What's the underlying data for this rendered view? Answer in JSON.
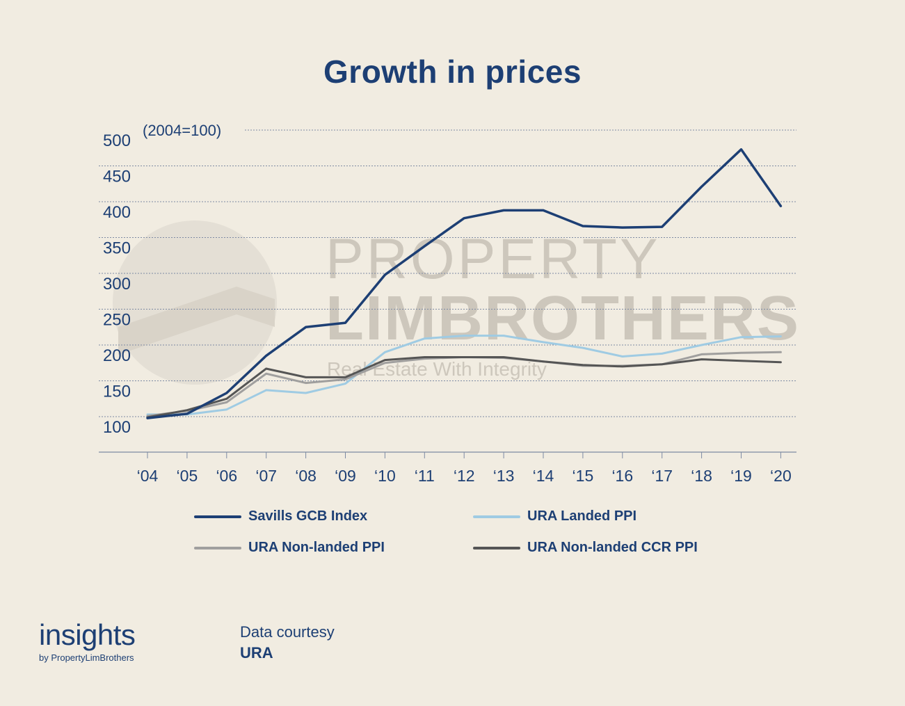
{
  "chart_data": {
    "type": "line",
    "title": "Growth in prices",
    "ylabel": "(2004=100)",
    "xlabel": "",
    "ylim": [
      100,
      500
    ],
    "yticks": [
      100,
      150,
      200,
      250,
      300,
      350,
      400,
      450,
      500
    ],
    "x": [
      "‘04",
      "‘05",
      "‘06",
      "‘07",
      "‘08",
      "‘09",
      "‘10",
      "‘11",
      "‘12",
      "‘13",
      "‘14",
      "‘15",
      "‘16",
      "‘17",
      "‘18",
      "‘19",
      "‘20"
    ],
    "grid": true,
    "legend_position": "bottom",
    "series": [
      {
        "name": "Savills GCB Index",
        "color": "#1d3f74",
        "values": [
          98,
          104,
          133,
          185,
          225,
          231,
          298,
          338,
          377,
          388,
          388,
          366,
          364,
          365,
          421,
          473,
          394
        ]
      },
      {
        "name": "URA Landed PPI",
        "color": "#9fcbe3",
        "values": [
          103,
          103,
          110,
          137,
          133,
          146,
          190,
          209,
          213,
          213,
          204,
          196,
          184,
          188,
          200,
          211,
          212
        ]
      },
      {
        "name": "URA Non-landed PPI",
        "color": "#a09f9e",
        "values": [
          101,
          108,
          120,
          160,
          147,
          152,
          175,
          181,
          183,
          182,
          177,
          171,
          171,
          173,
          187,
          189,
          190
        ]
      },
      {
        "name": "URA Non-landed CCR PPI",
        "color": "#555555",
        "values": [
          99,
          109,
          125,
          167,
          155,
          155,
          179,
          183,
          183,
          183,
          177,
          172,
          170,
          173,
          180,
          178,
          176
        ]
      }
    ]
  },
  "watermark": {
    "line1": "PROPERTY",
    "line2": "LIMBROTHERS",
    "tagline": "Real Estate With Integrity"
  },
  "brand": {
    "name": "insights",
    "sub": "by PropertyLimBrothers"
  },
  "credit": {
    "label": "Data courtesy",
    "source": "URA"
  }
}
